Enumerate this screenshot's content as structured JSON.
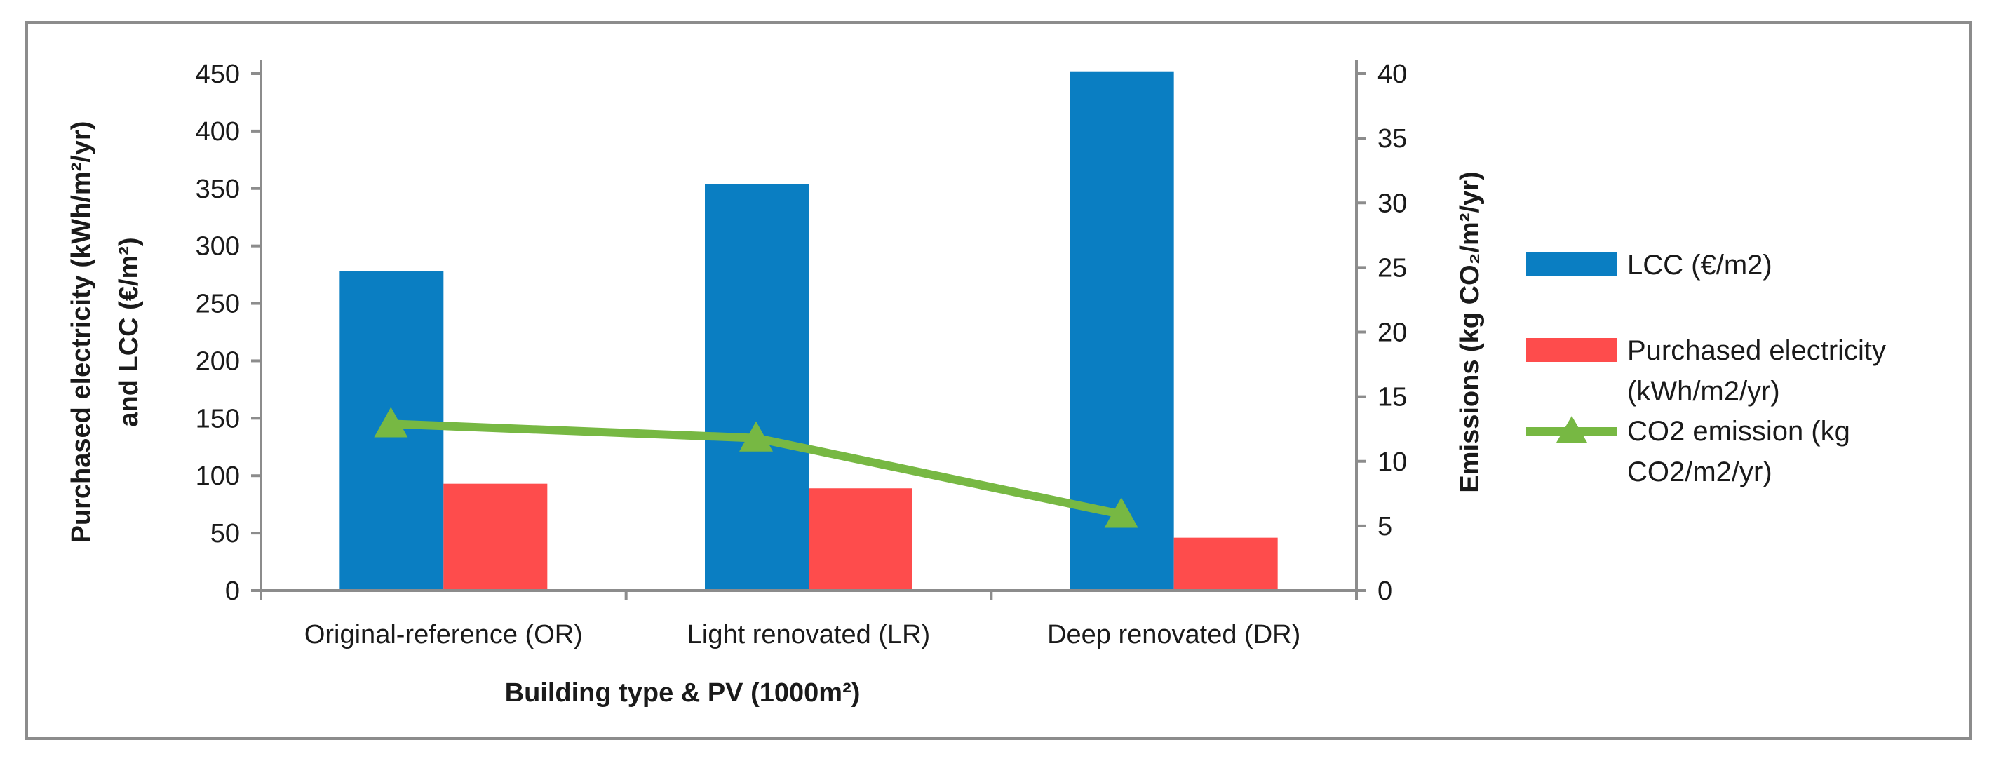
{
  "chart_data": {
    "type": "bar",
    "categories": [
      "Original-reference (OR)",
      "Light renovated (LR)",
      "Deep renovated (DR)"
    ],
    "series": [
      {
        "name": "LCC (€/m2)",
        "kind": "bar",
        "axis": "left",
        "color": "#0a7ec2",
        "values": [
          278,
          354,
          452
        ]
      },
      {
        "name": "Purchased electricity (kWh/m2/yr)",
        "kind": "bar",
        "axis": "left",
        "color": "#fe4c4c",
        "values": [
          93,
          89,
          46
        ]
      },
      {
        "name": "CO2 emission (kg CO2/m2/yr)",
        "kind": "line",
        "axis": "right",
        "color": "#77b843",
        "values": [
          12.9,
          11.8,
          5.9
        ]
      }
    ],
    "xlabel": "Building type & PV (1000m²)",
    "ylabel_lines": [
      "Purchased electricity (kWh/m²/yr)",
      "and LCC (€/m²)"
    ],
    "y2label": "Emissions (kg CO₂/m²/yr)",
    "ylim": [
      0,
      450
    ],
    "y2lim": [
      0,
      40
    ],
    "yticks": [
      "0",
      "50",
      "100",
      "150",
      "200",
      "250",
      "300",
      "350",
      "400",
      "450"
    ],
    "y2ticks": [
      "0",
      "5",
      "10",
      "15",
      "20",
      "25",
      "30",
      "35",
      "40"
    ],
    "legend": [
      {
        "lines": [
          "LCC (€/m2)"
        ]
      },
      {
        "lines": [
          "Purchased electricity",
          "(kWh/m2/yr)"
        ]
      },
      {
        "lines": [
          "CO2 emission (kg",
          "CO2/m2/yr)"
        ]
      }
    ],
    "legend_position": "right",
    "grid": false
  }
}
